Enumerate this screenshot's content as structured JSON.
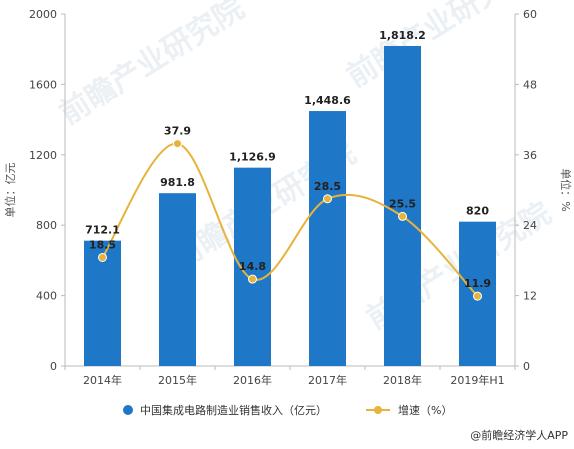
{
  "chart_data": {
    "type": "bar",
    "categories": [
      "2014年",
      "2015年",
      "2016年",
      "2017年",
      "2018年",
      "2019年H1"
    ],
    "series": [
      {
        "name": "中国集成电路制造业销售收入（亿元）",
        "type": "bar",
        "axis": "left",
        "values": [
          712.1,
          981.8,
          1126.9,
          1448.6,
          1818.2,
          820
        ],
        "labels": [
          "712.1",
          "981.8",
          "1,126.9",
          "1,448.6",
          "1,818.2",
          "820"
        ]
      },
      {
        "name": "增速（%）",
        "type": "line",
        "axis": "right",
        "smooth": true,
        "values": [
          18.5,
          37.9,
          14.8,
          28.5,
          25.5,
          11.9
        ],
        "labels": [
          "18.5",
          "37.9",
          "14.8",
          "28.5",
          "25.5",
          "11.9"
        ]
      }
    ],
    "ylabel_left": "单位：亿元",
    "ylabel_right": "单位：%",
    "ylim_left": [
      0,
      2000
    ],
    "yticks_left": [
      0,
      400,
      800,
      1200,
      1600,
      2000
    ],
    "ylim_right": [
      0,
      60
    ],
    "yticks_right": [
      0,
      12,
      24,
      36,
      48,
      60
    ],
    "grid": false,
    "legend_position": "bottom",
    "colors": {
      "bar": "#1f77c8",
      "line": "#e8b33a"
    }
  },
  "source": "@前瞻经济学人APP",
  "watermark": "前瞻产业研究院"
}
